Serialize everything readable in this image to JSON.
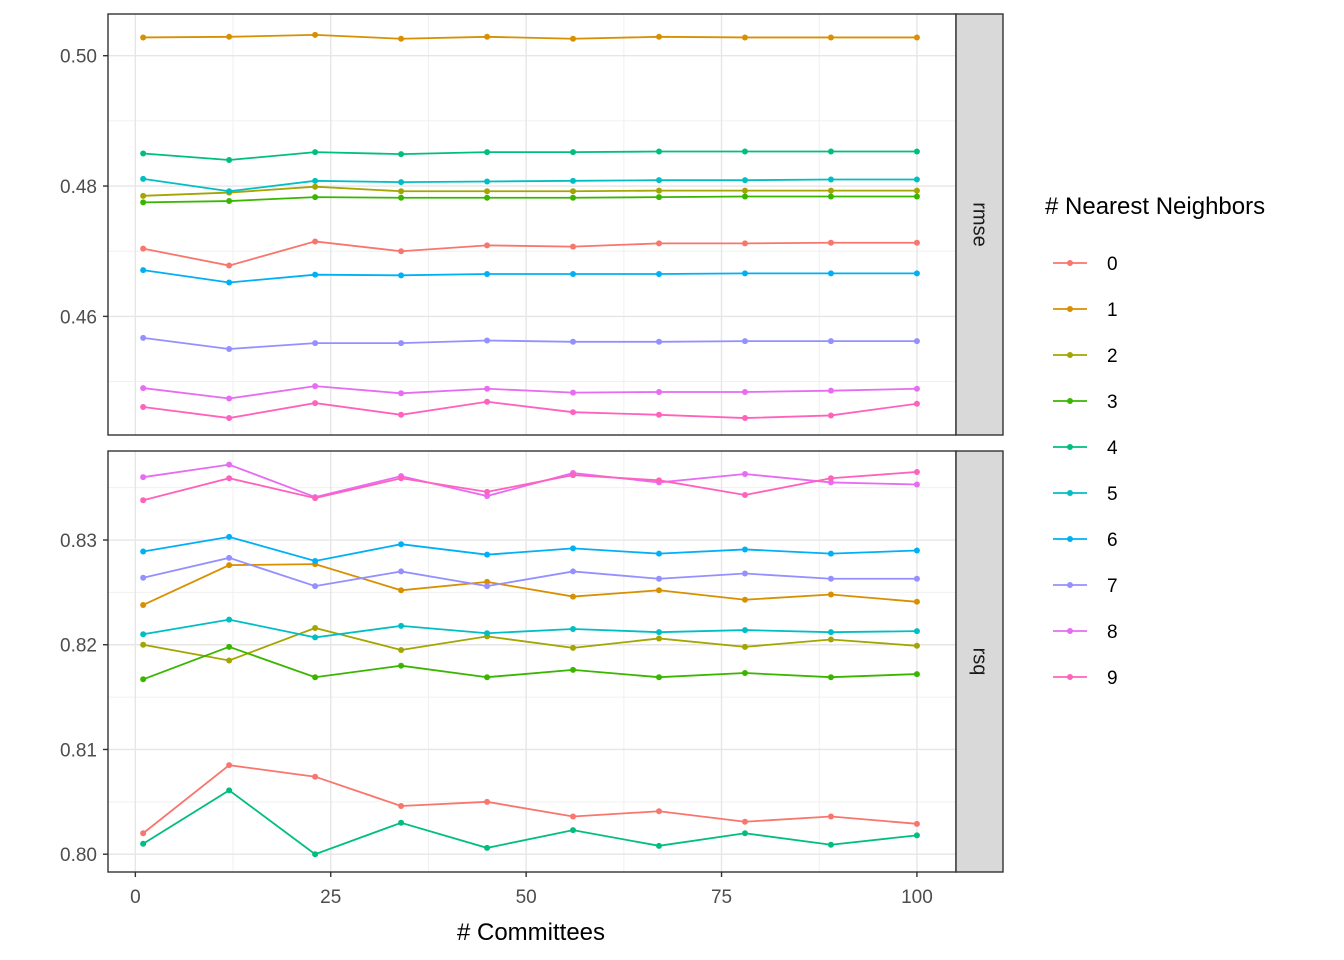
{
  "chart_data": {
    "type": "line",
    "xlabel": "# Committees",
    "ylabel": "",
    "xlim": [
      -3.5,
      105
    ],
    "xticks": [
      0,
      25,
      50,
      75,
      100
    ],
    "x": [
      1,
      12,
      23,
      34,
      45,
      56,
      67,
      78,
      89,
      100
    ],
    "grid": true,
    "legend": {
      "title": "# Nearest Neighbors",
      "placement": "right",
      "entries": [
        "0",
        "1",
        "2",
        "3",
        "4",
        "5",
        "6",
        "7",
        "8",
        "9"
      ]
    },
    "colors": [
      "#F8766D",
      "#D89000",
      "#A3A500",
      "#39B600",
      "#00BF7D",
      "#00BFC4",
      "#00B0F6",
      "#9590FF",
      "#E76BF3",
      "#FF62BC"
    ],
    "panels": [
      {
        "strip": "rmse",
        "ylim": [
          0.4418,
          0.5064
        ],
        "yticks": [
          0.46,
          0.48,
          0.5
        ],
        "ytick_labels": [
          "0.46",
          "0.48",
          "0.50"
        ],
        "series": [
          {
            "name": "0",
            "values": [
              0.4704,
              0.4678,
              0.4715,
              0.47,
              0.4709,
              0.4707,
              0.4712,
              0.4712,
              0.4713,
              0.4713
            ]
          },
          {
            "name": "1",
            "values": [
              0.5028,
              0.5029,
              0.5032,
              0.5026,
              0.5029,
              0.5026,
              0.5029,
              0.5028,
              0.5028,
              0.5028
            ]
          },
          {
            "name": "2",
            "values": [
              0.4785,
              0.479,
              0.4799,
              0.4792,
              0.4792,
              0.4792,
              0.4793,
              0.4793,
              0.4793,
              0.4793
            ]
          },
          {
            "name": "3",
            "values": [
              0.4775,
              0.4777,
              0.4783,
              0.4782,
              0.4782,
              0.4782,
              0.4783,
              0.4784,
              0.4784,
              0.4784
            ]
          },
          {
            "name": "4",
            "values": [
              0.485,
              0.484,
              0.4852,
              0.4849,
              0.4852,
              0.4852,
              0.4853,
              0.4853,
              0.4853,
              0.4853
            ]
          },
          {
            "name": "5",
            "values": [
              0.4811,
              0.4792,
              0.4808,
              0.4806,
              0.4807,
              0.4808,
              0.4809,
              0.4809,
              0.481,
              0.481
            ]
          },
          {
            "name": "6",
            "values": [
              0.4671,
              0.4652,
              0.4664,
              0.4663,
              0.4665,
              0.4665,
              0.4665,
              0.4666,
              0.4666,
              0.4666
            ]
          },
          {
            "name": "7",
            "values": [
              0.4567,
              0.455,
              0.4559,
              0.4559,
              0.4563,
              0.4561,
              0.4561,
              0.4562,
              0.4562,
              0.4562
            ]
          },
          {
            "name": "8",
            "values": [
              0.449,
              0.4474,
              0.4493,
              0.4482,
              0.4489,
              0.4483,
              0.4484,
              0.4484,
              0.4486,
              0.4489
            ]
          },
          {
            "name": "9",
            "values": [
              0.4461,
              0.4444,
              0.4467,
              0.4449,
              0.4469,
              0.4453,
              0.4449,
              0.4444,
              0.4448,
              0.4466
            ]
          }
        ]
      },
      {
        "strip": "rsq",
        "ylim": [
          0.7983,
          0.8385
        ],
        "yticks": [
          0.8,
          0.81,
          0.82,
          0.83
        ],
        "ytick_labels": [
          "0.80",
          "0.81",
          "0.82",
          "0.83"
        ],
        "series": [
          {
            "name": "0",
            "values": [
              0.802,
              0.8085,
              0.8074,
              0.8046,
              0.805,
              0.8036,
              0.8041,
              0.8031,
              0.8036,
              0.8029
            ]
          },
          {
            "name": "1",
            "values": [
              0.8238,
              0.8276,
              0.8277,
              0.8252,
              0.826,
              0.8246,
              0.8252,
              0.8243,
              0.8248,
              0.8241
            ]
          },
          {
            "name": "2",
            "values": [
              0.82,
              0.8185,
              0.8216,
              0.8195,
              0.8208,
              0.8197,
              0.8206,
              0.8198,
              0.8205,
              0.8199
            ]
          },
          {
            "name": "3",
            "values": [
              0.8167,
              0.8198,
              0.8169,
              0.818,
              0.8169,
              0.8176,
              0.8169,
              0.8173,
              0.8169,
              0.8172
            ]
          },
          {
            "name": "4",
            "values": [
              0.801,
              0.8061,
              0.8,
              0.803,
              0.8006,
              0.8023,
              0.8008,
              0.802,
              0.8009,
              0.8018
            ]
          },
          {
            "name": "5",
            "values": [
              0.821,
              0.8224,
              0.8207,
              0.8218,
              0.8211,
              0.8215,
              0.8212,
              0.8214,
              0.8212,
              0.8213
            ]
          },
          {
            "name": "6",
            "values": [
              0.8289,
              0.8303,
              0.828,
              0.8296,
              0.8286,
              0.8292,
              0.8287,
              0.8291,
              0.8287,
              0.829
            ]
          },
          {
            "name": "7",
            "values": [
              0.8264,
              0.8283,
              0.8256,
              0.827,
              0.8256,
              0.827,
              0.8263,
              0.8268,
              0.8263,
              0.8263
            ]
          },
          {
            "name": "8",
            "values": [
              0.836,
              0.8372,
              0.8341,
              0.8361,
              0.8342,
              0.8364,
              0.8355,
              0.8363,
              0.8355,
              0.8353
            ]
          },
          {
            "name": "9",
            "values": [
              0.8338,
              0.8359,
              0.834,
              0.8359,
              0.8346,
              0.8362,
              0.8357,
              0.8343,
              0.8359,
              0.8365
            ]
          }
        ]
      }
    ]
  }
}
